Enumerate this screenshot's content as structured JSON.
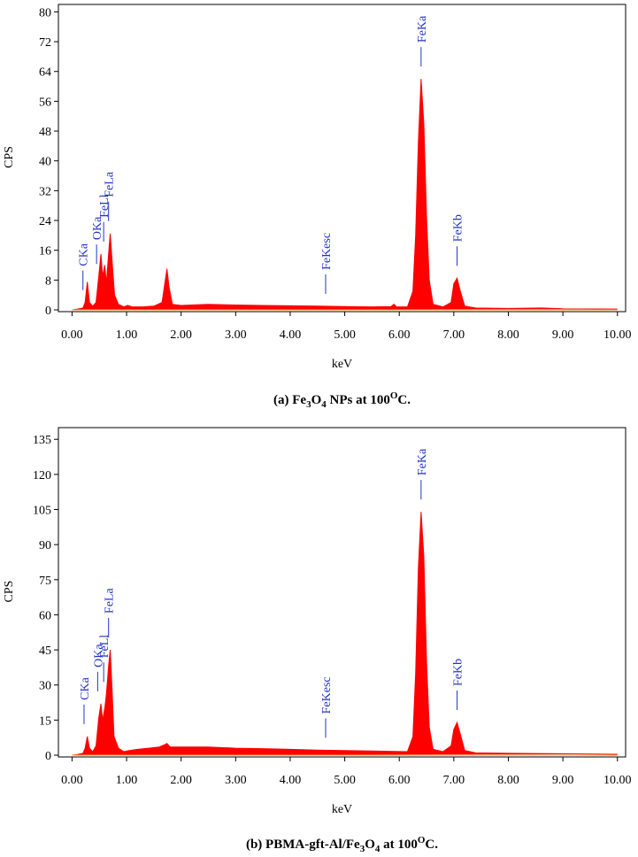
{
  "chart_data": [
    {
      "type": "area",
      "color": "#ff0000",
      "annotation_color": "#2233cc",
      "xlabel": "keV",
      "ylabel": "CPS",
      "caption": [
        {
          "text": "(a) Fe"
        },
        {
          "text": "3",
          "pos": "sub"
        },
        {
          "text": "O"
        },
        {
          "text": "4",
          "pos": "sub"
        },
        {
          "text": " NPs at 100"
        },
        {
          "text": "O",
          "pos": "sup"
        },
        {
          "text": "C."
        }
      ],
      "xlim": [
        -0.25,
        10.15
      ],
      "ylim": [
        0,
        82
      ],
      "xticks": [
        {
          "value": 0,
          "label": "0.00"
        },
        {
          "value": 1,
          "label": "1.00"
        },
        {
          "value": 2,
          "label": "2.00"
        },
        {
          "value": 3,
          "label": "3.00"
        },
        {
          "value": 4,
          "label": "4.00"
        },
        {
          "value": 5,
          "label": "5.00"
        },
        {
          "value": 6,
          "label": "6.00"
        },
        {
          "value": 7,
          "label": "7.00"
        },
        {
          "value": 8,
          "label": "8.00"
        },
        {
          "value": 9,
          "label": "9.00"
        },
        {
          "value": 10,
          "label": "10.00"
        }
      ],
      "yticks": [
        0,
        8,
        16,
        24,
        32,
        40,
        48,
        56,
        64,
        72,
        80
      ],
      "x": [
        0,
        0.1,
        0.2,
        0.24,
        0.28,
        0.32,
        0.38,
        0.44,
        0.49,
        0.53,
        0.56,
        0.6,
        0.63,
        0.67,
        0.7,
        0.74,
        0.78,
        0.85,
        0.95,
        1.02,
        1.1,
        1.3,
        1.5,
        1.65,
        1.7,
        1.74,
        1.78,
        1.84,
        2.0,
        2.5,
        3.0,
        3.5,
        4.0,
        4.5,
        5.0,
        5.5,
        5.85,
        5.9,
        5.95,
        6.15,
        6.25,
        6.3,
        6.35,
        6.4,
        6.45,
        6.5,
        6.55,
        6.62,
        6.8,
        6.95,
        7.0,
        7.06,
        7.12,
        7.2,
        7.4,
        8.0,
        8.6,
        9.0,
        10.0
      ],
      "values": [
        0,
        0.2,
        0.5,
        2,
        7.5,
        2,
        1,
        2,
        9,
        15,
        9,
        12,
        7,
        15,
        20.5,
        12,
        4,
        1.5,
        0.8,
        1.2,
        0.8,
        0.8,
        1,
        2,
        7,
        11,
        6,
        1.5,
        1.2,
        1.5,
        1.3,
        1.2,
        1.1,
        1,
        0.9,
        0.8,
        0.9,
        1.5,
        0.8,
        0.8,
        5,
        20,
        45,
        62,
        50,
        25,
        8,
        1.5,
        0.8,
        2,
        7,
        8.5,
        5,
        1,
        0.5,
        0.4,
        0.5,
        0.3,
        0.2
      ],
      "annotations": [
        {
          "text": "CKa",
          "x": 0.2
        },
        {
          "text": "OKa",
          "x": 0.45
        },
        {
          "text": "FeLl",
          "x": 0.58
        },
        {
          "text": "FeLa",
          "x": 0.67
        },
        {
          "text": "FeKesc",
          "x": 4.65
        },
        {
          "text": "FeKa",
          "x": 6.4
        },
        {
          "text": "FeKb",
          "x": 7.06
        }
      ]
    },
    {
      "type": "area",
      "color": "#ff0000",
      "annotation_color": "#2233cc",
      "xlabel": "keV",
      "ylabel": "CPS",
      "caption": [
        {
          "text": "(b) PBMA-gft-Al/Fe"
        },
        {
          "text": "3",
          "pos": "sub"
        },
        {
          "text": "O"
        },
        {
          "text": "4",
          "pos": "sub"
        },
        {
          "text": " at 100"
        },
        {
          "text": "O",
          "pos": "sup"
        },
        {
          "text": "C."
        }
      ],
      "xlim": [
        -0.25,
        10.15
      ],
      "ylim": [
        0,
        140
      ],
      "xticks": [
        {
          "value": 0,
          "label": "0.00"
        },
        {
          "value": 1,
          "label": "1.00"
        },
        {
          "value": 2,
          "label": "2.00"
        },
        {
          "value": 3,
          "label": "3.00"
        },
        {
          "value": 4,
          "label": "4.00"
        },
        {
          "value": 5,
          "label": "5.00"
        },
        {
          "value": 6,
          "label": "6.00"
        },
        {
          "value": 7,
          "label": "7.00"
        },
        {
          "value": 8,
          "label": "8.00"
        },
        {
          "value": 9,
          "label": "9.00"
        },
        {
          "value": 10,
          "label": "10.00"
        }
      ],
      "yticks": [
        0,
        15,
        30,
        45,
        60,
        75,
        90,
        105,
        120,
        135
      ],
      "x": [
        0,
        0.1,
        0.2,
        0.24,
        0.28,
        0.32,
        0.38,
        0.44,
        0.49,
        0.53,
        0.56,
        0.6,
        0.63,
        0.67,
        0.7,
        0.73,
        0.77,
        0.85,
        0.95,
        1.05,
        1.2,
        1.4,
        1.6,
        1.7,
        1.74,
        1.8,
        2.0,
        2.5,
        3.0,
        3.5,
        4.0,
        4.5,
        5.0,
        5.5,
        5.9,
        6.15,
        6.25,
        6.3,
        6.35,
        6.4,
        6.45,
        6.5,
        6.55,
        6.62,
        6.8,
        6.95,
        7.0,
        7.06,
        7.12,
        7.2,
        7.4,
        8.0,
        9.0,
        10.0
      ],
      "values": [
        0,
        0.3,
        0.8,
        3,
        8,
        3,
        1.5,
        4,
        16,
        22,
        15,
        20,
        26,
        38,
        45,
        30,
        8,
        3,
        1.5,
        2,
        2.5,
        3,
        3.5,
        4.5,
        5,
        3.5,
        3.5,
        3.5,
        3,
        2.8,
        2.5,
        2.2,
        2,
        1.8,
        1.6,
        1.5,
        8,
        35,
        80,
        104,
        85,
        40,
        12,
        2.5,
        1.5,
        4,
        11,
        14,
        9,
        2,
        1,
        0.8,
        0.6,
        0.4
      ],
      "annotations": [
        {
          "text": "CKa",
          "x": 0.22
        },
        {
          "text": "OKa",
          "x": 0.47
        },
        {
          "text": "FeLl",
          "x": 0.58
        },
        {
          "text": "FeLa",
          "x": 0.67
        },
        {
          "text": "FeKesc",
          "x": 4.65
        },
        {
          "text": "FeKa",
          "x": 6.4
        },
        {
          "text": "FeKb",
          "x": 7.06
        }
      ]
    }
  ]
}
